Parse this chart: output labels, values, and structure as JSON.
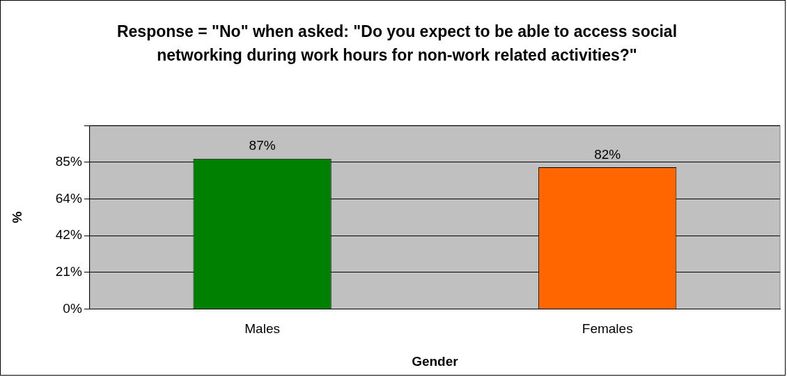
{
  "chart_data": {
    "type": "bar",
    "title": "Response = \"No\" when asked: \"Do you expect to be able to access social networking during work hours for non-work related activities?\"",
    "xlabel": "Gender",
    "ylabel": "%",
    "categories": [
      "Males",
      "Females"
    ],
    "values": [
      87,
      82
    ],
    "colors": [
      "#008000",
      "#ff6600"
    ],
    "value_labels": [
      "87%",
      "82%"
    ],
    "ylim": [
      0,
      106.25
    ],
    "yticks": [
      {
        "value": 0,
        "label": "0%"
      },
      {
        "value": 21.25,
        "label": "21%"
      },
      {
        "value": 42.5,
        "label": "42%"
      },
      {
        "value": 63.75,
        "label": "64%"
      },
      {
        "value": 85,
        "label": "85%"
      },
      {
        "value": 106.25,
        "label": null
      }
    ],
    "grid": "y",
    "legend": false
  }
}
